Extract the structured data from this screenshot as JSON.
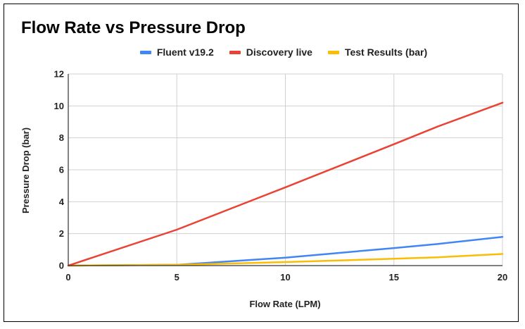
{
  "chart_data": {
    "type": "line",
    "title": "Flow Rate vs Pressure Drop",
    "xlabel": "Flow Rate (LPM)",
    "ylabel": "Pressure Drop (bar)",
    "xlim": [
      0,
      20
    ],
    "ylim": [
      0,
      12
    ],
    "x_ticks": [
      "0",
      "5",
      "10",
      "15",
      "20"
    ],
    "y_ticks": [
      "0",
      "2",
      "4",
      "6",
      "8",
      "10",
      "12"
    ],
    "grid": true,
    "legend_position": "top",
    "series": [
      {
        "name": "Fluent v19.2",
        "color": "#4285F4",
        "points": [
          [
            0,
            0
          ],
          [
            5,
            0.05
          ],
          [
            10,
            0.5
          ],
          [
            15,
            1.1
          ],
          [
            17,
            1.35
          ],
          [
            20,
            1.8
          ]
        ]
      },
      {
        "name": "Discovery live",
        "color": "#EA4335",
        "points": [
          [
            0,
            0
          ],
          [
            5,
            2.25
          ],
          [
            10,
            4.9
          ],
          [
            15,
            7.6
          ],
          [
            17,
            8.7
          ],
          [
            20,
            10.2
          ]
        ]
      },
      {
        "name": "Test Results (bar)",
        "color": "#FBBC04",
        "points": [
          [
            0,
            0
          ],
          [
            5,
            0.05
          ],
          [
            10,
            0.22
          ],
          [
            15,
            0.43
          ],
          [
            17,
            0.52
          ],
          [
            20,
            0.73
          ]
        ]
      }
    ]
  }
}
